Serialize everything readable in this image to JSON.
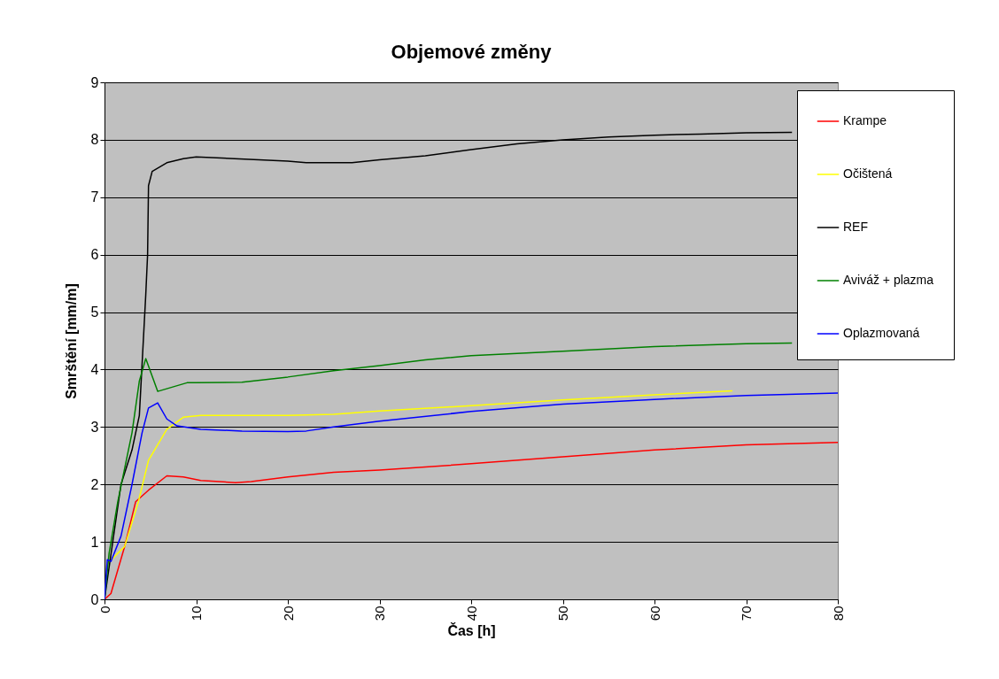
{
  "chart_data": {
    "type": "line",
    "title": "Objemové změny",
    "xlabel": "Čas [h]",
    "ylabel": "Smrštění [mm/m]",
    "xlim": [
      0,
      80
    ],
    "xticks": [
      0,
      10,
      20,
      30,
      40,
      50,
      60,
      70,
      80
    ],
    "ylim": [
      0,
      9
    ],
    "yticks": [
      0,
      1,
      2,
      3,
      4,
      5,
      6,
      7,
      8,
      9
    ],
    "grid": "y",
    "legend": "top right",
    "marker": "none",
    "line_style": "solid",
    "series": [
      {
        "name": "Krampe",
        "color": "#ff0000",
        "x": [
          0,
          0.7,
          2.2,
          3.4,
          4.8,
          6.8,
          8.6,
          10.5,
          14.3,
          16,
          20,
          25,
          30,
          40,
          50,
          60,
          70,
          80
        ],
        "values": [
          0,
          0.1,
          0.92,
          1.7,
          1.9,
          2.15,
          2.13,
          2.07,
          2.03,
          2.05,
          2.13,
          2.21,
          2.25,
          2.36,
          2.48,
          2.6,
          2.69,
          2.73
        ]
      },
      {
        "name": "Očištená",
        "color": "#ffff00",
        "x": [
          0,
          0.36,
          2.2,
          3.7,
          4.8,
          6.8,
          8.6,
          10.5,
          20,
          25,
          30,
          40,
          50,
          60,
          68.5
        ],
        "values": [
          0,
          0.63,
          0.92,
          1.7,
          2.42,
          2.96,
          3.17,
          3.2,
          3.2,
          3.22,
          3.28,
          3.37,
          3.47,
          3.56,
          3.63
        ]
      },
      {
        "name": "REF",
        "color": "#000000",
        "x": [
          0,
          1.8,
          3.0,
          3.8,
          4.1,
          4.5,
          4.7,
          4.8,
          5.2,
          6.8,
          8.6,
          10,
          20,
          22,
          27,
          30,
          35,
          40,
          45,
          50,
          55,
          60,
          65,
          70,
          75
        ],
        "values": [
          0,
          2.0,
          2.6,
          3.2,
          4.1,
          5.3,
          6.0,
          7.2,
          7.45,
          7.6,
          7.67,
          7.7,
          7.63,
          7.6,
          7.6,
          7.65,
          7.72,
          7.83,
          7.93,
          8.0,
          8.05,
          8.08,
          8.1,
          8.12,
          8.13
        ]
      },
      {
        "name": "Aviváž + plazma",
        "color": "#008000",
        "x": [
          0,
          0.5,
          1.45,
          3.0,
          3.8,
          4.5,
          5.8,
          9,
          10,
          15,
          20,
          25,
          30,
          35,
          40,
          50,
          60,
          70,
          75
        ],
        "values": [
          0,
          0.8,
          1.7,
          2.9,
          3.8,
          4.19,
          3.62,
          3.77,
          3.77,
          3.78,
          3.87,
          3.98,
          4.07,
          4.17,
          4.24,
          4.32,
          4.4,
          4.45,
          4.46
        ]
      },
      {
        "name": "Oplazmovaná",
        "color": "#0000ff",
        "x": [
          0,
          0.3,
          0.7,
          1.8,
          3.0,
          4.1,
          4.8,
          5.8,
          6.8,
          7.9,
          10.5,
          15,
          20,
          22,
          25,
          30,
          40,
          50,
          60,
          70,
          80
        ],
        "values": [
          0,
          0.69,
          0.66,
          1.1,
          2.0,
          2.9,
          3.33,
          3.42,
          3.14,
          3.02,
          2.96,
          2.93,
          2.92,
          2.93,
          3.0,
          3.1,
          3.27,
          3.4,
          3.48,
          3.55,
          3.59
        ]
      }
    ]
  }
}
